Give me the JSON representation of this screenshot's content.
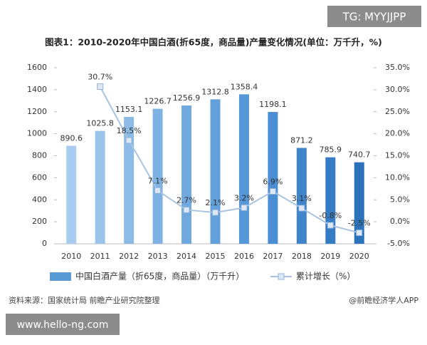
{
  "watermark_top": "TG: MYYJJPP",
  "watermark_bottom": "www.hello-ng.com",
  "chart_data": {
    "type": "bar",
    "title": "图表1：2010-2020年中国白酒(折65度，商品量)产量变化情况(单位：万千升，%)",
    "categories": [
      "2010",
      "2011",
      "2012",
      "2013",
      "2014",
      "2015",
      "2016",
      "2017",
      "2018",
      "2019",
      "2020"
    ],
    "series": [
      {
        "name": "中国白酒产量（折65度，商品量）（万千升）",
        "type": "bar",
        "color": "#5b9bd5",
        "colors": [
          "#a8cdf0",
          "#9ac4ec",
          "#8cbbe8",
          "#7eb2e4",
          "#70a9e0",
          "#62a0dc",
          "#5697d8",
          "#4b8ed3",
          "#4085cc",
          "#367cc4",
          "#2d73bc"
        ],
        "values": [
          890.6,
          1025.8,
          1153.1,
          1226.7,
          1256.9,
          1312.8,
          1358.4,
          1198.1,
          871.2,
          785.9,
          740.7
        ]
      },
      {
        "name": "累计增长（%）",
        "type": "line",
        "axis": "y2",
        "color": "#a9c4e0",
        "values": [
          null,
          30.7,
          18.5,
          7.1,
          2.7,
          2.1,
          3.2,
          6.9,
          3.1,
          -0.8,
          -2.5
        ],
        "value_labels": [
          null,
          "30.7%",
          "18.5%",
          "7.1%",
          "2.7%",
          "2.1%",
          "3.2%",
          "6.9%",
          "3.1%",
          "-0.8%",
          "-2.5%"
        ]
      }
    ],
    "ylim": [
      0,
      1600
    ],
    "yticks": [
      0,
      200,
      400,
      600,
      800,
      1000,
      1200,
      1400,
      1600
    ],
    "y2lim": [
      -5,
      35
    ],
    "y2ticks": [
      {
        "value": -5,
        "label": "-5.0%"
      },
      {
        "value": 0,
        "label": "0.0%"
      },
      {
        "value": 5,
        "label": "5.0%"
      },
      {
        "value": 10,
        "label": "10.0%"
      },
      {
        "value": 15,
        "label": "15.0%"
      },
      {
        "value": 20,
        "label": "20.0%"
      },
      {
        "value": 25,
        "label": "25.0%"
      },
      {
        "value": 30,
        "label": "30.0%"
      },
      {
        "value": 35,
        "label": "35.0%"
      }
    ],
    "source": "资料来源：国家统计局 前瞻产业研究院整理",
    "credit": "@前瞻经济学人APP"
  }
}
